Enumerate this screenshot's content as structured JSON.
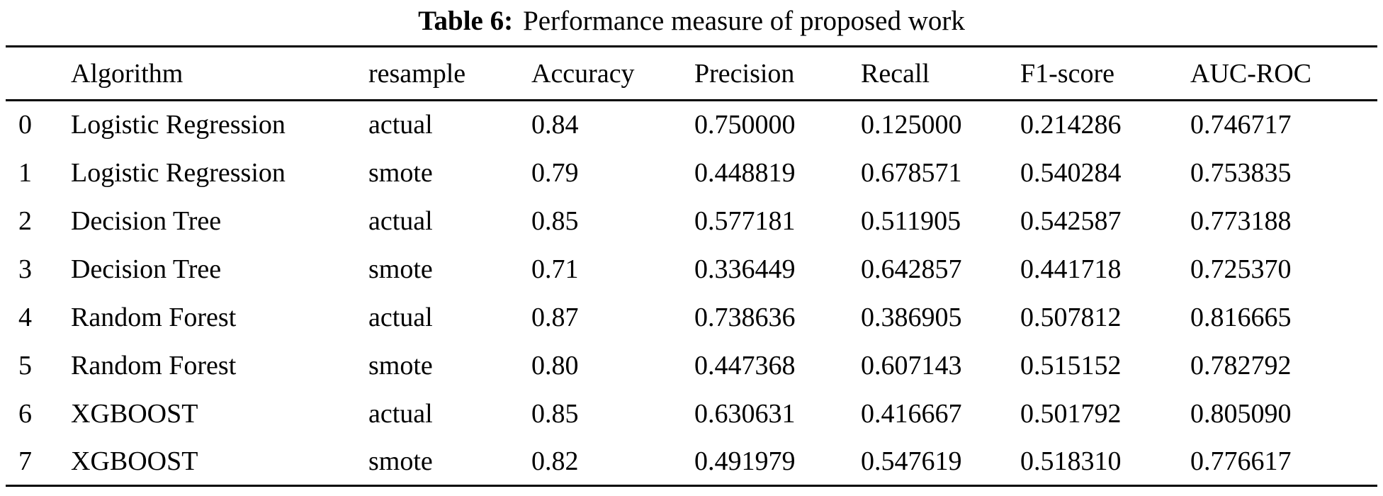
{
  "title": {
    "label": "Table 6:",
    "caption": "Performance measure of proposed work"
  },
  "table": {
    "column_keys": [
      "index",
      "algorithm",
      "resample",
      "accuracy",
      "precision",
      "recall",
      "f1-score",
      "auc-roc"
    ],
    "columns": [
      "",
      "Algorithm",
      "resample",
      "Accuracy",
      "Precision",
      "Recall",
      "F1-score",
      "AUC-ROC"
    ],
    "rows": [
      [
        "0",
        "Logistic Regression",
        "actual",
        "0.84",
        "0.750000",
        "0.125000",
        "0.214286",
        "0.746717"
      ],
      [
        "1",
        "Logistic Regression",
        "smote",
        "0.79",
        "0.448819",
        "0.678571",
        "0.540284",
        "0.753835"
      ],
      [
        "2",
        "Decision Tree",
        "actual",
        "0.85",
        "0.577181",
        "0.511905",
        "0.542587",
        "0.773188"
      ],
      [
        "3",
        "Decision Tree",
        "smote",
        "0.71",
        "0.336449",
        "0.642857",
        "0.441718",
        "0.725370"
      ],
      [
        "4",
        "Random Forest",
        "actual",
        "0.87",
        "0.738636",
        "0.386905",
        "0.507812",
        "0.816665"
      ],
      [
        "5",
        "Random Forest",
        "smote",
        "0.80",
        "0.447368",
        "0.607143",
        "0.515152",
        "0.782792"
      ],
      [
        "6",
        "XGBOOST",
        "actual",
        "0.85",
        "0.630631",
        "0.416667",
        "0.501792",
        "0.805090"
      ],
      [
        "7",
        "XGBOOST",
        "smote",
        "0.82",
        "0.491979",
        "0.547619",
        "0.518310",
        "0.776617"
      ]
    ]
  },
  "colors": {
    "text": "#000000",
    "background": "#ffffff",
    "rule": "#000000"
  }
}
